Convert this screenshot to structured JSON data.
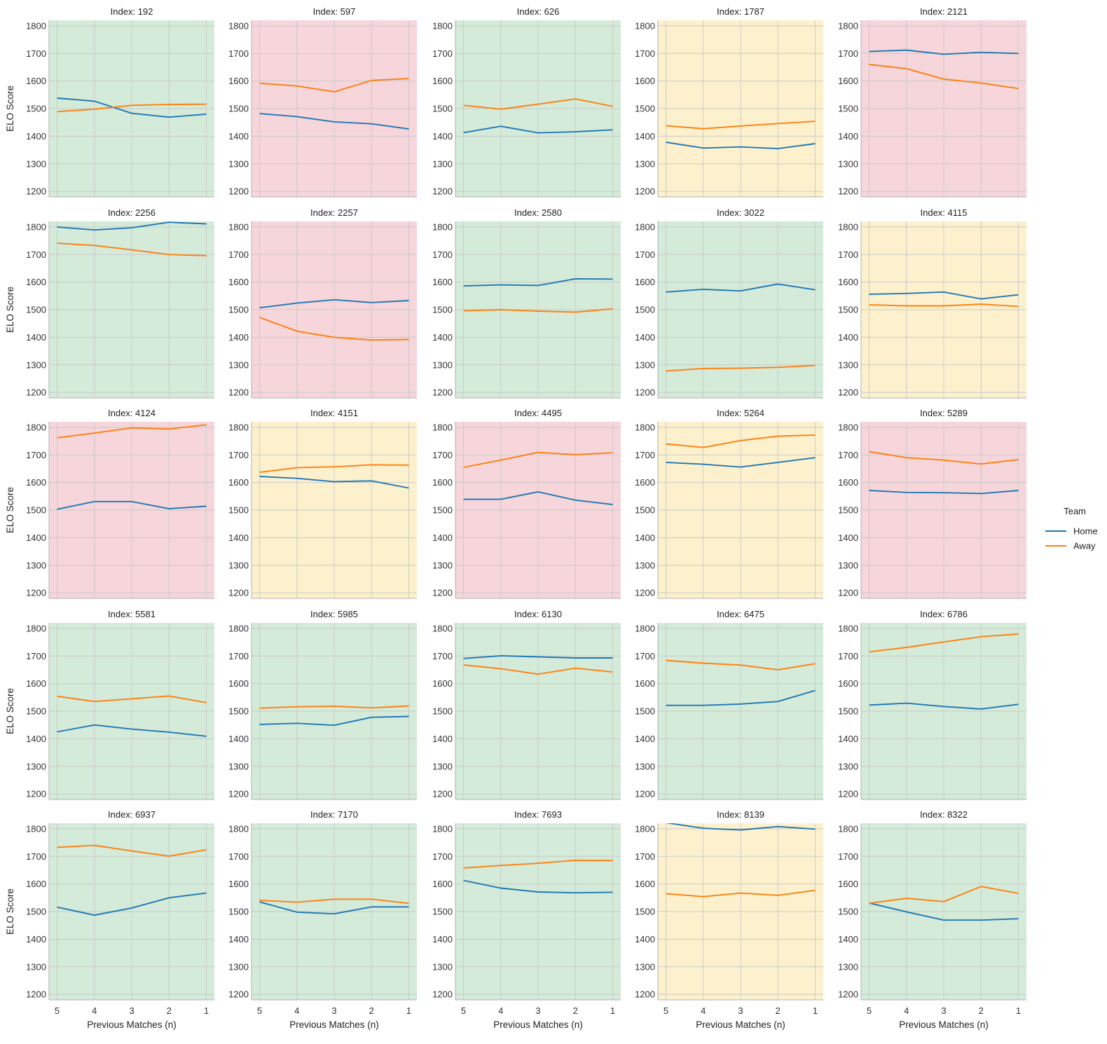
{
  "chart_data": {
    "type": "line",
    "layout": "facet-grid-5x5",
    "x": [
      5,
      4,
      3,
      2,
      1
    ],
    "xlabel": "Previous Matches (n)",
    "ylabel": "ELO Score",
    "ylim": [
      1180,
      1820
    ],
    "yticks": [
      1200,
      1300,
      1400,
      1500,
      1600,
      1700,
      1800
    ],
    "grid": true,
    "title_prefix": "Index: ",
    "legend": {
      "title": "Team",
      "placement": "right",
      "entries": [
        {
          "name": "Home",
          "color": "#1f77b4"
        },
        {
          "name": "Away",
          "color": "#ff7f0e"
        }
      ]
    },
    "background_colors": {
      "green": "#d4ebd9",
      "red": "#f6d6da",
      "yellow": "#fdf1cd"
    },
    "panels": [
      {
        "index": "192",
        "background": "green",
        "home": [
          1538,
          1527,
          1483,
          1469,
          1480
        ],
        "away": [
          1489,
          1498,
          1512,
          1515,
          1516
        ]
      },
      {
        "index": "597",
        "background": "red",
        "home": [
          1482,
          1471,
          1452,
          1445,
          1426
        ],
        "away": [
          1592,
          1582,
          1561,
          1602,
          1609
        ]
      },
      {
        "index": "626",
        "background": "green",
        "home": [
          1413,
          1436,
          1412,
          1416,
          1423
        ],
        "away": [
          1512,
          1498,
          1516,
          1535,
          1508
        ]
      },
      {
        "index": "1787",
        "background": "yellow",
        "home": [
          1378,
          1357,
          1361,
          1355,
          1373
        ],
        "away": [
          1438,
          1427,
          1437,
          1446,
          1454
        ]
      },
      {
        "index": "2121",
        "background": "red",
        "home": [
          1707,
          1712,
          1697,
          1704,
          1700
        ],
        "away": [
          1660,
          1645,
          1607,
          1593,
          1573
        ]
      },
      {
        "index": "2256",
        "background": "green",
        "home": [
          1800,
          1789,
          1797,
          1817,
          1811
        ],
        "away": [
          1741,
          1733,
          1717,
          1700,
          1696
        ]
      },
      {
        "index": "2257",
        "background": "red",
        "home": [
          1507,
          1524,
          1536,
          1526,
          1533
        ],
        "away": [
          1472,
          1422,
          1400,
          1390,
          1392
        ]
      },
      {
        "index": "2580",
        "background": "green",
        "home": [
          1586,
          1590,
          1588,
          1612,
          1611
        ],
        "away": [
          1496,
          1500,
          1495,
          1491,
          1503
        ]
      },
      {
        "index": "3022",
        "background": "green",
        "home": [
          1564,
          1574,
          1568,
          1593,
          1572
        ],
        "away": [
          1278,
          1287,
          1288,
          1291,
          1298
        ]
      },
      {
        "index": "4115",
        "background": "yellow",
        "home": [
          1556,
          1559,
          1564,
          1539,
          1554
        ],
        "away": [
          1518,
          1514,
          1514,
          1520,
          1512
        ]
      },
      {
        "index": "4124",
        "background": "red",
        "home": [
          1503,
          1531,
          1531,
          1505,
          1514
        ],
        "away": [
          1762,
          1779,
          1798,
          1794,
          1809
        ]
      },
      {
        "index": "4151",
        "background": "yellow",
        "home": [
          1622,
          1615,
          1603,
          1606,
          1580
        ],
        "away": [
          1637,
          1654,
          1657,
          1664,
          1663
        ]
      },
      {
        "index": "4495",
        "background": "red",
        "home": [
          1539,
          1539,
          1566,
          1536,
          1520
        ],
        "away": [
          1655,
          1681,
          1709,
          1701,
          1708
        ]
      },
      {
        "index": "5264",
        "background": "yellow",
        "home": [
          1673,
          1666,
          1656,
          1673,
          1690
        ],
        "away": [
          1740,
          1727,
          1752,
          1768,
          1772
        ]
      },
      {
        "index": "5289",
        "background": "red",
        "home": [
          1571,
          1564,
          1563,
          1560,
          1571
        ],
        "away": [
          1712,
          1690,
          1681,
          1667,
          1683
        ]
      },
      {
        "index": "5581",
        "background": "green",
        "home": [
          1425,
          1450,
          1435,
          1424,
          1409
        ],
        "away": [
          1554,
          1535,
          1545,
          1555,
          1531
        ]
      },
      {
        "index": "5985",
        "background": "green",
        "home": [
          1452,
          1456,
          1449,
          1478,
          1481
        ],
        "away": [
          1511,
          1516,
          1518,
          1512,
          1519
        ]
      },
      {
        "index": "6130",
        "background": "green",
        "home": [
          1691,
          1701,
          1697,
          1693,
          1693
        ],
        "away": [
          1668,
          1654,
          1634,
          1656,
          1642
        ]
      },
      {
        "index": "6475",
        "background": "green",
        "home": [
          1521,
          1521,
          1526,
          1535,
          1575
        ],
        "away": [
          1684,
          1674,
          1667,
          1650,
          1672
        ]
      },
      {
        "index": "6786",
        "background": "green",
        "home": [
          1522,
          1529,
          1517,
          1508,
          1525
        ],
        "away": [
          1715,
          1731,
          1751,
          1770,
          1780
        ]
      },
      {
        "index": "6937",
        "background": "green",
        "home": [
          1516,
          1487,
          1513,
          1550,
          1567
        ],
        "away": [
          1733,
          1740,
          1720,
          1701,
          1724
        ]
      },
      {
        "index": "7170",
        "background": "green",
        "home": [
          1535,
          1498,
          1492,
          1517,
          1517
        ],
        "away": [
          1541,
          1534,
          1545,
          1545,
          1530
        ]
      },
      {
        "index": "7693",
        "background": "green",
        "home": [
          1613,
          1585,
          1571,
          1568,
          1570
        ],
        "away": [
          1658,
          1667,
          1675,
          1686,
          1685
        ]
      },
      {
        "index": "8139",
        "background": "yellow",
        "home": [
          1822,
          1802,
          1796,
          1808,
          1799
        ],
        "away": [
          1565,
          1554,
          1567,
          1559,
          1577
        ]
      },
      {
        "index": "8322",
        "background": "green",
        "home": [
          1531,
          1499,
          1469,
          1469,
          1474
        ],
        "away": [
          1530,
          1548,
          1536,
          1591,
          1566
        ]
      }
    ]
  }
}
